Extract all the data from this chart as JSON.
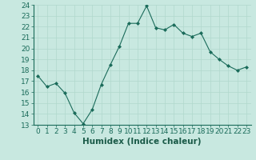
{
  "x": [
    0,
    1,
    2,
    3,
    4,
    5,
    6,
    7,
    8,
    9,
    10,
    11,
    12,
    13,
    14,
    15,
    16,
    17,
    18,
    19,
    20,
    21,
    22,
    23
  ],
  "y": [
    17.5,
    16.5,
    16.8,
    15.9,
    14.1,
    13.1,
    14.4,
    16.7,
    18.5,
    20.2,
    22.3,
    22.3,
    23.9,
    21.9,
    21.7,
    22.2,
    21.4,
    21.1,
    21.4,
    19.7,
    19.0,
    18.4,
    18.0,
    18.3
  ],
  "xlabel": "Humidex (Indice chaleur)",
  "ylim": [
    13,
    24
  ],
  "xlim": [
    -0.5,
    23.5
  ],
  "yticks": [
    13,
    14,
    15,
    16,
    17,
    18,
    19,
    20,
    21,
    22,
    23,
    24
  ],
  "xticks": [
    0,
    1,
    2,
    3,
    4,
    5,
    6,
    7,
    8,
    9,
    10,
    11,
    12,
    13,
    14,
    15,
    16,
    17,
    18,
    19,
    20,
    21,
    22,
    23
  ],
  "line_color": "#1a6b5a",
  "marker_color": "#1a6b5a",
  "bg_color": "#c8e8e0",
  "grid_color": "#b0d8cc",
  "tick_label_fontsize": 6.5,
  "xlabel_fontsize": 7.5
}
